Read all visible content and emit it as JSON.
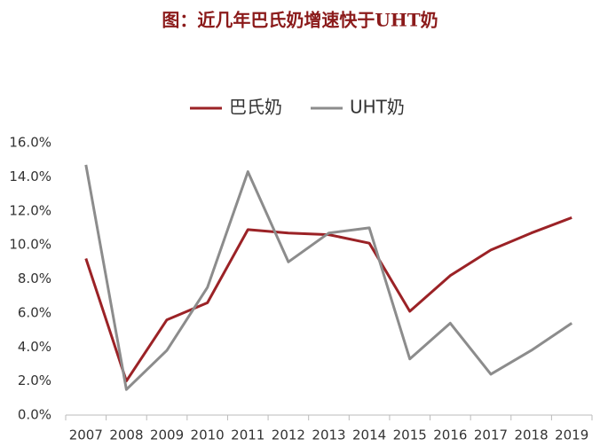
{
  "chart_data": {
    "type": "line",
    "title": "图：近几年巴氏奶增速快于UHT奶",
    "categories": [
      "2007",
      "2008",
      "2009",
      "2010",
      "2011",
      "2012",
      "2013",
      "2014",
      "2015",
      "2016",
      "2017",
      "2018",
      "2019"
    ],
    "series": [
      {
        "name": "巴氏奶",
        "color": "#9b2226",
        "values": [
          9.2,
          2.0,
          5.6,
          6.6,
          10.9,
          10.7,
          10.6,
          10.1,
          6.1,
          8.2,
          9.7,
          10.7,
          11.6
        ]
      },
      {
        "name": "UHT奶",
        "color": "#8c8c8c",
        "values": [
          14.7,
          1.5,
          3.8,
          7.5,
          14.3,
          9.0,
          10.7,
          11.0,
          3.3,
          5.4,
          2.4,
          3.8,
          5.4
        ]
      }
    ],
    "ylim": [
      0,
      16
    ],
    "yticks": [
      {
        "value": 0,
        "label": "0.0%"
      },
      {
        "value": 2,
        "label": "2.0%"
      },
      {
        "value": 4,
        "label": "4.0%"
      },
      {
        "value": 6,
        "label": "6.0%"
      },
      {
        "value": 8,
        "label": "8.0%"
      },
      {
        "value": 10,
        "label": "10.0%"
      },
      {
        "value": 12,
        "label": "12.0%"
      },
      {
        "value": 14,
        "label": "14.0%"
      },
      {
        "value": 16,
        "label": "16.0%"
      }
    ],
    "grid": false,
    "legend": "top"
  }
}
